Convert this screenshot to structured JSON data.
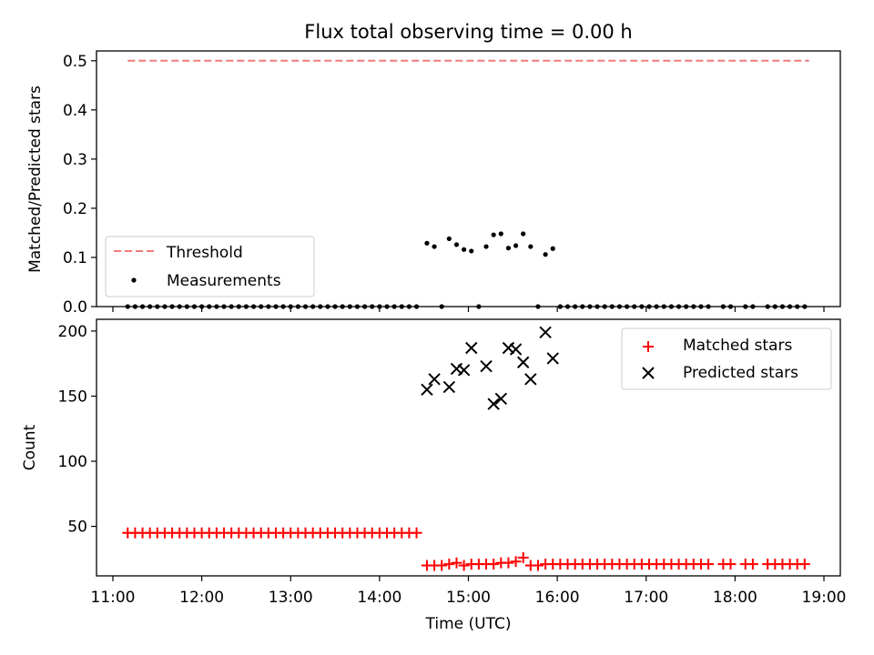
{
  "chart_data": [
    {
      "type": "scatter",
      "title": "Flux total observing time = 0.00 h",
      "xlabel": "",
      "ylabel": "Matched/Predicted stars",
      "x_unit": "time of day (UTC)",
      "xlim": [
        "11:00",
        "19:00"
      ],
      "ylim": [
        0,
        0.52
      ],
      "yticks": [
        "0.0",
        "0.1",
        "0.2",
        "0.3",
        "0.4",
        "0.5"
      ],
      "grid": false,
      "legend_position": "lower-left",
      "series": [
        {
          "name": "Threshold",
          "kind": "dashed-line",
          "color": "#f07b7b",
          "points": [
            [
              "11:10",
              0.5
            ],
            [
              "18:50",
              0.5
            ]
          ]
        },
        {
          "name": "Measurements",
          "kind": "scatter",
          "color": "#000000",
          "points": [
            [
              "11:10",
              0
            ],
            [
              "11:15",
              0
            ],
            [
              "11:20",
              0
            ],
            [
              "11:25",
              0
            ],
            [
              "11:30",
              0
            ],
            [
              "11:35",
              0
            ],
            [
              "11:40",
              0
            ],
            [
              "11:45",
              0
            ],
            [
              "11:50",
              0
            ],
            [
              "11:55",
              0
            ],
            [
              "12:00",
              0
            ],
            [
              "12:05",
              0
            ],
            [
              "12:10",
              0
            ],
            [
              "12:15",
              0
            ],
            [
              "12:20",
              0
            ],
            [
              "12:25",
              0
            ],
            [
              "12:30",
              0
            ],
            [
              "12:35",
              0
            ],
            [
              "12:40",
              0
            ],
            [
              "12:45",
              0
            ],
            [
              "12:50",
              0
            ],
            [
              "12:55",
              0
            ],
            [
              "13:00",
              0
            ],
            [
              "13:05",
              0
            ],
            [
              "13:10",
              0
            ],
            [
              "13:15",
              0
            ],
            [
              "13:20",
              0
            ],
            [
              "13:25",
              0
            ],
            [
              "13:30",
              0
            ],
            [
              "13:35",
              0
            ],
            [
              "13:40",
              0
            ],
            [
              "13:45",
              0
            ],
            [
              "13:50",
              0
            ],
            [
              "13:55",
              0
            ],
            [
              "14:00",
              0
            ],
            [
              "14:05",
              0
            ],
            [
              "14:10",
              0
            ],
            [
              "14:15",
              0
            ],
            [
              "14:20",
              0
            ],
            [
              "14:25",
              0
            ],
            [
              "14:32",
              0.129
            ],
            [
              "14:37",
              0.122
            ],
            [
              "14:42",
              0
            ],
            [
              "14:47",
              0.138
            ],
            [
              "14:52",
              0.126
            ],
            [
              "14:57",
              0.116
            ],
            [
              "15:02",
              0.113
            ],
            [
              "15:07",
              0
            ],
            [
              "15:12",
              0.122
            ],
            [
              "15:17",
              0.146
            ],
            [
              "15:22",
              0.148
            ],
            [
              "15:27",
              0.119
            ],
            [
              "15:32",
              0.124
            ],
            [
              "15:37",
              0.148
            ],
            [
              "15:42",
              0.122
            ],
            [
              "15:47",
              0
            ],
            [
              "15:52",
              0.106
            ],
            [
              "15:57",
              0.118
            ],
            [
              "16:02",
              0
            ],
            [
              "16:07",
              0
            ],
            [
              "16:12",
              0
            ],
            [
              "16:17",
              0
            ],
            [
              "16:22",
              0
            ],
            [
              "16:27",
              0
            ],
            [
              "16:32",
              0
            ],
            [
              "16:37",
              0
            ],
            [
              "16:42",
              0
            ],
            [
              "16:47",
              0
            ],
            [
              "16:52",
              0
            ],
            [
              "16:57",
              0
            ],
            [
              "17:02",
              0
            ],
            [
              "17:07",
              0
            ],
            [
              "17:12",
              0
            ],
            [
              "17:17",
              0
            ],
            [
              "17:22",
              0
            ],
            [
              "17:27",
              0
            ],
            [
              "17:32",
              0
            ],
            [
              "17:37",
              0
            ],
            [
              "17:42",
              0
            ],
            [
              "17:52",
              0
            ],
            [
              "17:57",
              0
            ],
            [
              "18:07",
              0
            ],
            [
              "18:12",
              0
            ],
            [
              "18:22",
              0
            ],
            [
              "18:27",
              0
            ],
            [
              "18:32",
              0
            ],
            [
              "18:37",
              0
            ],
            [
              "18:42",
              0
            ],
            [
              "18:47",
              0
            ]
          ]
        }
      ]
    },
    {
      "type": "scatter",
      "title": "",
      "xlabel": "Time (UTC)",
      "ylabel": "Count",
      "x_unit": "time of day (UTC)",
      "xlim": [
        "11:00",
        "19:00"
      ],
      "ylim": [
        12,
        209
      ],
      "xticks": [
        "11:00",
        "12:00",
        "13:00",
        "14:00",
        "15:00",
        "16:00",
        "17:00",
        "18:00",
        "19:00"
      ],
      "yticks": [
        "50",
        "100",
        "150",
        "200"
      ],
      "grid": false,
      "legend_position": "upper-right",
      "series": [
        {
          "name": "Matched stars",
          "marker": "plus",
          "color": "#ff0000",
          "points": [
            [
              "11:10",
              45
            ],
            [
              "11:15",
              45
            ],
            [
              "11:20",
              45
            ],
            [
              "11:25",
              45
            ],
            [
              "11:30",
              45
            ],
            [
              "11:35",
              45
            ],
            [
              "11:40",
              45
            ],
            [
              "11:45",
              45
            ],
            [
              "11:50",
              45
            ],
            [
              "11:55",
              45
            ],
            [
              "12:00",
              45
            ],
            [
              "12:05",
              45
            ],
            [
              "12:10",
              45
            ],
            [
              "12:15",
              45
            ],
            [
              "12:20",
              45
            ],
            [
              "12:25",
              45
            ],
            [
              "12:30",
              45
            ],
            [
              "12:35",
              45
            ],
            [
              "12:40",
              45
            ],
            [
              "12:45",
              45
            ],
            [
              "12:50",
              45
            ],
            [
              "12:55",
              45
            ],
            [
              "13:00",
              45
            ],
            [
              "13:05",
              45
            ],
            [
              "13:10",
              45
            ],
            [
              "13:15",
              45
            ],
            [
              "13:20",
              45
            ],
            [
              "13:25",
              45
            ],
            [
              "13:30",
              45
            ],
            [
              "13:35",
              45
            ],
            [
              "13:40",
              45
            ],
            [
              "13:45",
              45
            ],
            [
              "13:50",
              45
            ],
            [
              "13:55",
              45
            ],
            [
              "14:00",
              45
            ],
            [
              "14:05",
              45
            ],
            [
              "14:10",
              45
            ],
            [
              "14:15",
              45
            ],
            [
              "14:20",
              45
            ],
            [
              "14:25",
              45
            ],
            [
              "14:32",
              20
            ],
            [
              "14:37",
              20
            ],
            [
              "14:42",
              20
            ],
            [
              "14:47",
              21
            ],
            [
              "14:52",
              22
            ],
            [
              "14:57",
              20
            ],
            [
              "15:02",
              21
            ],
            [
              "15:07",
              21
            ],
            [
              "15:12",
              21
            ],
            [
              "15:17",
              21
            ],
            [
              "15:22",
              22
            ],
            [
              "15:27",
              22
            ],
            [
              "15:32",
              23
            ],
            [
              "15:37",
              26
            ],
            [
              "15:42",
              20
            ],
            [
              "15:47",
              20
            ],
            [
              "15:52",
              21
            ],
            [
              "15:57",
              21
            ],
            [
              "16:02",
              21
            ],
            [
              "16:07",
              21
            ],
            [
              "16:12",
              21
            ],
            [
              "16:17",
              21
            ],
            [
              "16:22",
              21
            ],
            [
              "16:27",
              21
            ],
            [
              "16:32",
              21
            ],
            [
              "16:37",
              21
            ],
            [
              "16:42",
              21
            ],
            [
              "16:47",
              21
            ],
            [
              "16:52",
              21
            ],
            [
              "16:57",
              21
            ],
            [
              "17:02",
              21
            ],
            [
              "17:07",
              21
            ],
            [
              "17:12",
              21
            ],
            [
              "17:17",
              21
            ],
            [
              "17:22",
              21
            ],
            [
              "17:27",
              21
            ],
            [
              "17:32",
              21
            ],
            [
              "17:37",
              21
            ],
            [
              "17:42",
              21
            ],
            [
              "17:52",
              21
            ],
            [
              "17:57",
              21
            ],
            [
              "18:07",
              21
            ],
            [
              "18:12",
              21
            ],
            [
              "18:22",
              21
            ],
            [
              "18:27",
              21
            ],
            [
              "18:32",
              21
            ],
            [
              "18:37",
              21
            ],
            [
              "18:42",
              21
            ],
            [
              "18:47",
              21
            ]
          ]
        },
        {
          "name": "Predicted stars",
          "marker": "x",
          "color": "#000000",
          "points": [
            [
              "14:32",
              155
            ],
            [
              "14:37",
              163
            ],
            [
              "14:47",
              157
            ],
            [
              "14:52",
              171
            ],
            [
              "14:57",
              170
            ],
            [
              "15:02",
              187
            ],
            [
              "15:12",
              173
            ],
            [
              "15:17",
              144
            ],
            [
              "15:22",
              148
            ],
            [
              "15:27",
              187
            ],
            [
              "15:32",
              186
            ],
            [
              "15:37",
              176
            ],
            [
              "15:42",
              163
            ],
            [
              "15:52",
              199
            ],
            [
              "15:57",
              179
            ]
          ]
        }
      ]
    }
  ]
}
